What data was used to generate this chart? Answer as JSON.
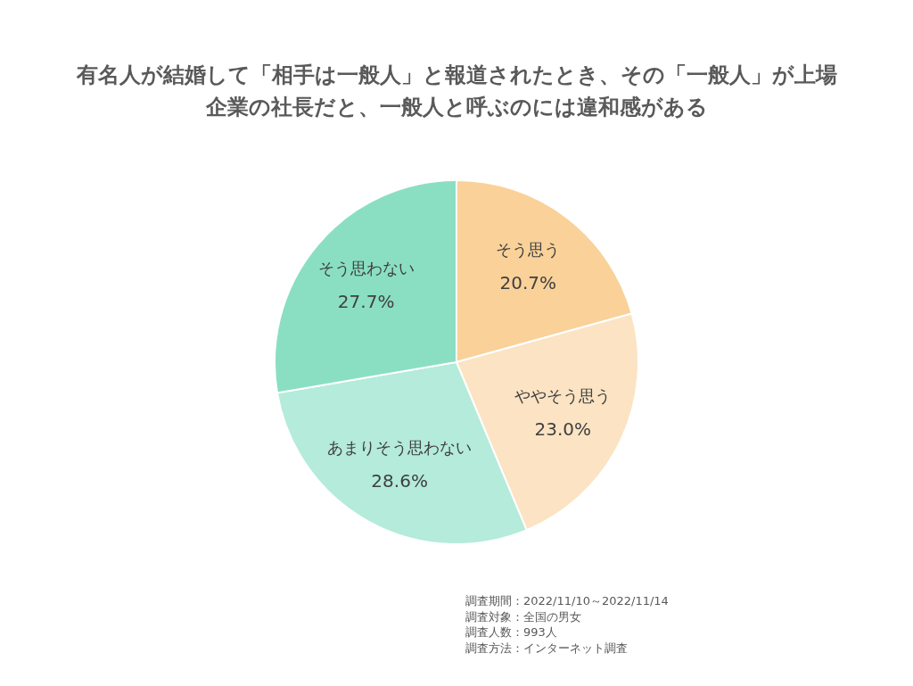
{
  "chart_data": {
    "type": "pie",
    "title": "有名人が結婚して「相手は一般人」と報道されたとき、その「一般人」が上場企業の社長だと、一般人と呼ぶのには違和感がある",
    "categories": [
      "そう思う",
      "ややそう思う",
      "あまりそう思わない",
      "そう思わない"
    ],
    "values": [
      20.7,
      23.0,
      28.6,
      27.7
    ],
    "value_labels": [
      "20.7%",
      "23.0%",
      "28.6%",
      "27.7%"
    ],
    "colors": [
      "#f9d199",
      "#fbe3c3",
      "#b4ebda",
      "#8adfc3"
    ],
    "legend": false,
    "annotations": [
      "調査期間：2022/11/10～2022/11/14",
      "調査対象：全国の男女",
      "調査人数：993人",
      "調査方法：インターネット調査"
    ]
  }
}
